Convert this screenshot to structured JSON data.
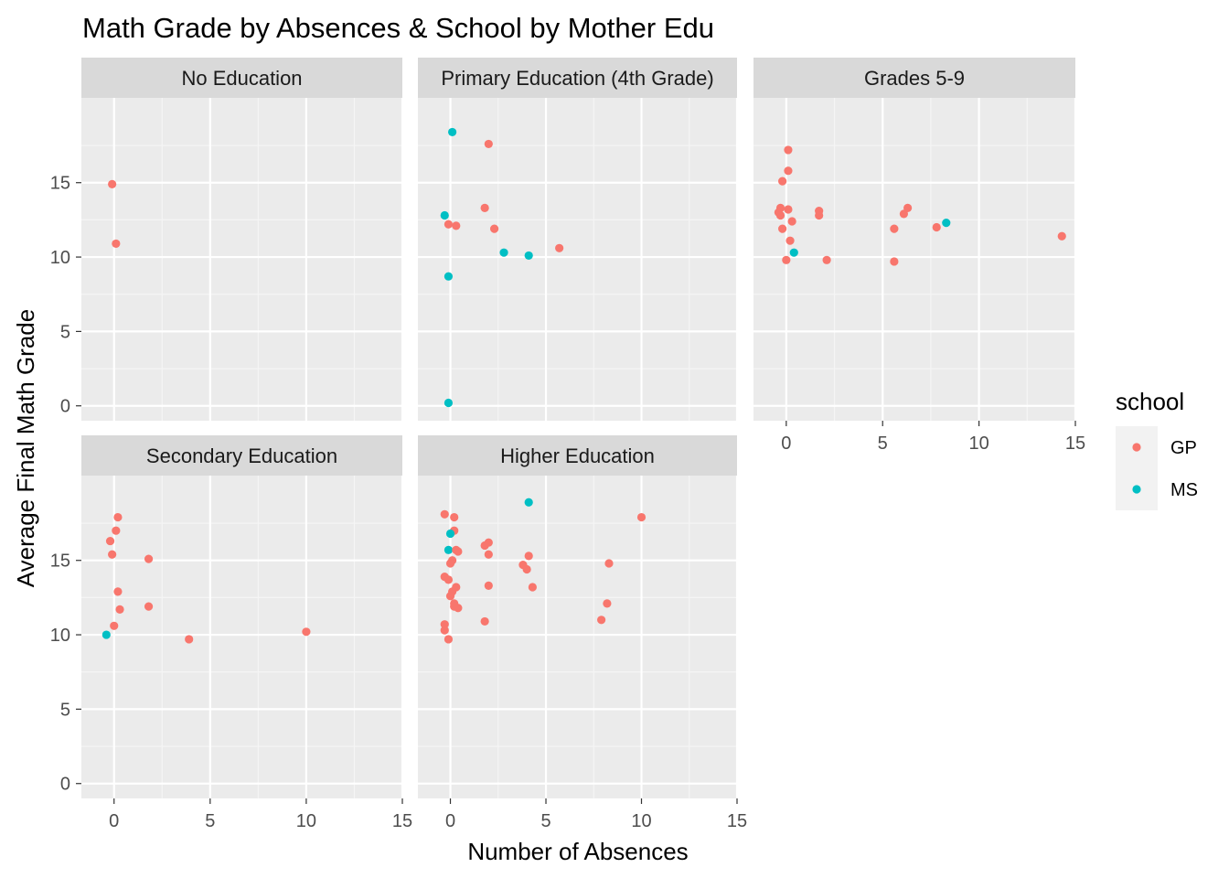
{
  "chart_data": {
    "type": "scatter",
    "title": "Math Grade by Absences & School by Mother Edu",
    "xlabel": "Number of Absences",
    "ylabel": "Average Final Math Grade",
    "xlim": [
      -1.7,
      15
    ],
    "ylim": [
      -1,
      20.7
    ],
    "xticks": [
      0,
      5,
      10,
      15
    ],
    "xtick_labels": [
      "0",
      "5",
      "10",
      "15"
    ],
    "yticks": [
      0,
      5,
      10,
      15
    ],
    "ytick_labels": [
      "0",
      "5",
      "10",
      "15"
    ],
    "grid": true,
    "legend": {
      "title": "school",
      "position": "right",
      "entries": [
        {
          "name": "GP",
          "color": "#F8766D"
        },
        {
          "name": "MS",
          "color": "#00BFC4"
        }
      ]
    },
    "colors": {
      "GP": "#F8766D",
      "MS": "#00BFC4"
    },
    "panels": [
      {
        "label": "No Education",
        "points": [
          {
            "x": -0.1,
            "y": 14.9,
            "school": "GP"
          },
          {
            "x": 0.1,
            "y": 10.9,
            "school": "GP"
          }
        ]
      },
      {
        "label": "Primary Education (4th Grade)",
        "points": [
          {
            "x": 0.1,
            "y": 18.4,
            "school": "MS"
          },
          {
            "x": 2.0,
            "y": 17.6,
            "school": "GP"
          },
          {
            "x": 1.8,
            "y": 13.3,
            "school": "GP"
          },
          {
            "x": -0.3,
            "y": 12.8,
            "school": "MS"
          },
          {
            "x": -0.1,
            "y": 12.2,
            "school": "GP"
          },
          {
            "x": 0.3,
            "y": 12.1,
            "school": "GP"
          },
          {
            "x": 2.3,
            "y": 11.9,
            "school": "GP"
          },
          {
            "x": 5.7,
            "y": 10.6,
            "school": "GP"
          },
          {
            "x": 2.8,
            "y": 10.3,
            "school": "MS"
          },
          {
            "x": 4.1,
            "y": 10.1,
            "school": "MS"
          },
          {
            "x": -0.1,
            "y": 8.7,
            "school": "MS"
          },
          {
            "x": -0.1,
            "y": 0.2,
            "school": "MS"
          }
        ]
      },
      {
        "label": "Grades 5-9",
        "points": [
          {
            "x": 0.1,
            "y": 17.2,
            "school": "GP"
          },
          {
            "x": 0.1,
            "y": 15.8,
            "school": "GP"
          },
          {
            "x": -0.2,
            "y": 15.1,
            "school": "GP"
          },
          {
            "x": -0.3,
            "y": 13.3,
            "school": "GP"
          },
          {
            "x": 0.1,
            "y": 13.2,
            "school": "GP"
          },
          {
            "x": -0.4,
            "y": 13.0,
            "school": "GP"
          },
          {
            "x": -0.3,
            "y": 12.8,
            "school": "GP"
          },
          {
            "x": 0.3,
            "y": 12.4,
            "school": "GP"
          },
          {
            "x": -0.2,
            "y": 11.9,
            "school": "GP"
          },
          {
            "x": 0.2,
            "y": 11.1,
            "school": "GP"
          },
          {
            "x": 0.4,
            "y": 10.3,
            "school": "MS"
          },
          {
            "x": 0.0,
            "y": 9.8,
            "school": "GP"
          },
          {
            "x": 1.7,
            "y": 13.1,
            "school": "GP"
          },
          {
            "x": 1.7,
            "y": 12.8,
            "school": "GP"
          },
          {
            "x": 2.1,
            "y": 9.8,
            "school": "GP"
          },
          {
            "x": 5.6,
            "y": 11.9,
            "school": "GP"
          },
          {
            "x": 5.6,
            "y": 9.7,
            "school": "GP"
          },
          {
            "x": 6.1,
            "y": 12.9,
            "school": "GP"
          },
          {
            "x": 6.3,
            "y": 13.3,
            "school": "GP"
          },
          {
            "x": 7.8,
            "y": 12.0,
            "school": "GP"
          },
          {
            "x": 8.3,
            "y": 12.3,
            "school": "MS"
          },
          {
            "x": 14.3,
            "y": 11.4,
            "school": "GP"
          }
        ]
      },
      {
        "label": "Secondary Education",
        "points": [
          {
            "x": 0.2,
            "y": 17.9,
            "school": "GP"
          },
          {
            "x": 0.1,
            "y": 17.0,
            "school": "GP"
          },
          {
            "x": -0.2,
            "y": 16.3,
            "school": "GP"
          },
          {
            "x": -0.1,
            "y": 15.4,
            "school": "GP"
          },
          {
            "x": 1.8,
            "y": 15.1,
            "school": "GP"
          },
          {
            "x": 0.2,
            "y": 12.9,
            "school": "GP"
          },
          {
            "x": 1.8,
            "y": 11.9,
            "school": "GP"
          },
          {
            "x": 0.3,
            "y": 11.7,
            "school": "GP"
          },
          {
            "x": 0.0,
            "y": 10.6,
            "school": "GP"
          },
          {
            "x": -0.4,
            "y": 10.0,
            "school": "MS"
          },
          {
            "x": 3.9,
            "y": 9.7,
            "school": "GP"
          },
          {
            "x": 10.0,
            "y": 10.2,
            "school": "GP"
          }
        ]
      },
      {
        "label": "Higher Education",
        "points": [
          {
            "x": 4.1,
            "y": 18.9,
            "school": "MS"
          },
          {
            "x": -0.3,
            "y": 18.1,
            "school": "GP"
          },
          {
            "x": 0.2,
            "y": 17.9,
            "school": "GP"
          },
          {
            "x": 10.0,
            "y": 17.9,
            "school": "GP"
          },
          {
            "x": 0.2,
            "y": 17.0,
            "school": "GP"
          },
          {
            "x": 0.0,
            "y": 16.8,
            "school": "MS"
          },
          {
            "x": 2.0,
            "y": 16.2,
            "school": "GP"
          },
          {
            "x": 1.8,
            "y": 16.0,
            "school": "GP"
          },
          {
            "x": -0.1,
            "y": 15.7,
            "school": "MS"
          },
          {
            "x": 0.3,
            "y": 15.7,
            "school": "GP"
          },
          {
            "x": 0.4,
            "y": 15.6,
            "school": "GP"
          },
          {
            "x": 2.0,
            "y": 15.4,
            "school": "GP"
          },
          {
            "x": 4.1,
            "y": 15.3,
            "school": "GP"
          },
          {
            "x": 0.1,
            "y": 15.0,
            "school": "GP"
          },
          {
            "x": 0.0,
            "y": 14.8,
            "school": "GP"
          },
          {
            "x": 8.3,
            "y": 14.8,
            "school": "GP"
          },
          {
            "x": 3.8,
            "y": 14.7,
            "school": "GP"
          },
          {
            "x": 4.0,
            "y": 14.4,
            "school": "GP"
          },
          {
            "x": -0.3,
            "y": 13.9,
            "school": "GP"
          },
          {
            "x": -0.1,
            "y": 13.7,
            "school": "GP"
          },
          {
            "x": 2.0,
            "y": 13.3,
            "school": "GP"
          },
          {
            "x": 0.3,
            "y": 13.2,
            "school": "GP"
          },
          {
            "x": 4.3,
            "y": 13.2,
            "school": "GP"
          },
          {
            "x": 0.1,
            "y": 12.9,
            "school": "GP"
          },
          {
            "x": 0.0,
            "y": 12.6,
            "school": "GP"
          },
          {
            "x": 0.2,
            "y": 12.1,
            "school": "GP"
          },
          {
            "x": 8.2,
            "y": 12.1,
            "school": "GP"
          },
          {
            "x": 0.2,
            "y": 11.9,
            "school": "GP"
          },
          {
            "x": 0.4,
            "y": 11.8,
            "school": "GP"
          },
          {
            "x": 7.9,
            "y": 11.0,
            "school": "GP"
          },
          {
            "x": 1.8,
            "y": 10.9,
            "school": "GP"
          },
          {
            "x": -0.3,
            "y": 10.7,
            "school": "GP"
          },
          {
            "x": -0.3,
            "y": 10.3,
            "school": "GP"
          },
          {
            "x": -0.1,
            "y": 9.7,
            "school": "GP"
          }
        ]
      }
    ]
  }
}
